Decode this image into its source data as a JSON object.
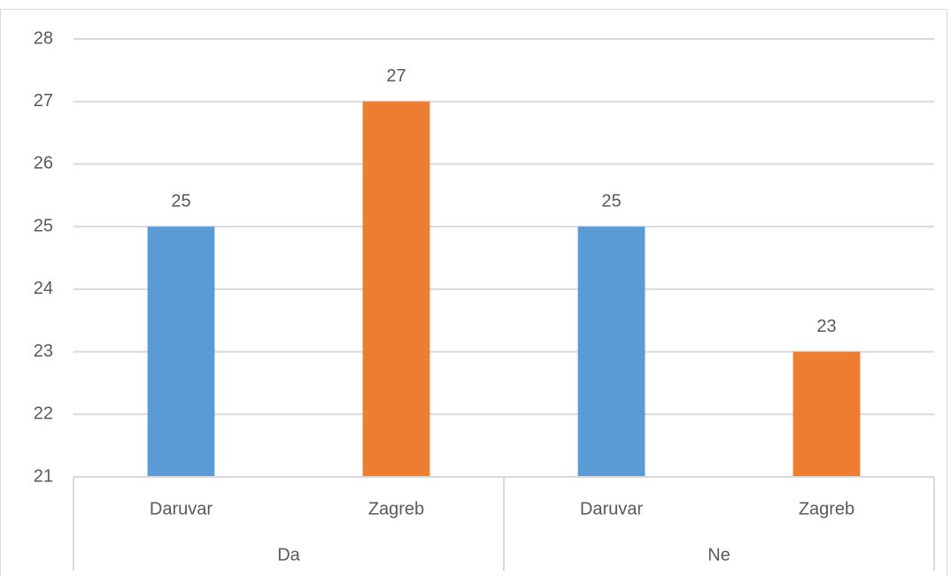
{
  "chart_data": {
    "type": "bar",
    "groups": [
      {
        "name": "Da",
        "categories": [
          "Daruvar",
          "Zagreb"
        ],
        "values": [
          25,
          27
        ]
      },
      {
        "name": "Ne",
        "categories": [
          "Daruvar",
          "Zagreb"
        ],
        "values": [
          25,
          23
        ]
      }
    ],
    "colors": [
      "#5b9bd5",
      "#ed7d31"
    ],
    "ylim": [
      21,
      28
    ],
    "yticks": [
      21,
      22,
      23,
      24,
      25,
      26,
      27,
      28
    ],
    "grid": true
  }
}
